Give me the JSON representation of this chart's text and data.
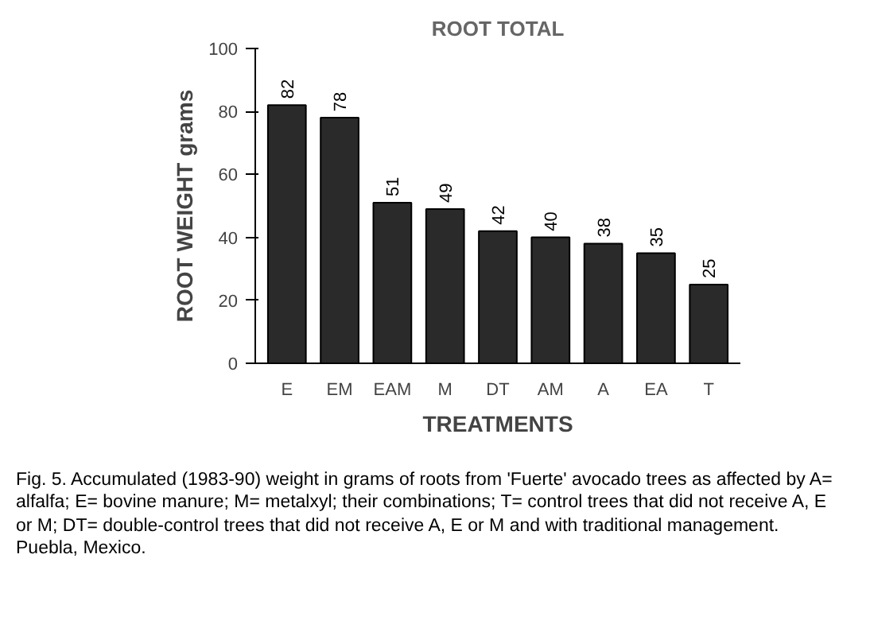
{
  "chart_data": {
    "type": "bar",
    "title": "ROOT TOTAL",
    "xlabel": "TREATMENTS",
    "ylabel": "ROOT WEIGHT grams",
    "categories": [
      "E",
      "EM",
      "EAM",
      "M",
      "DT",
      "AM",
      "A",
      "EA",
      "T"
    ],
    "values": [
      82,
      78,
      51,
      49,
      42,
      40,
      38,
      35,
      25
    ],
    "color": "#2a2a2a",
    "data_labels": true,
    "grid": false,
    "ylim": [
      0,
      100
    ],
    "yticks": [
      0,
      20,
      40,
      60,
      80,
      100
    ],
    "annotations": [
      "Fig. 5.  Accumulated (1983-90) weight in grams of roots from 'Fuerte' avocado trees as affected by A= alfalfa; E= bovine manure; M= metalxyl; their combinations; T= control trees that did not receive A, E or M; DT= double-control trees that did not receive A, E or M and with traditional management.  Puebla, Mexico."
    ]
  }
}
